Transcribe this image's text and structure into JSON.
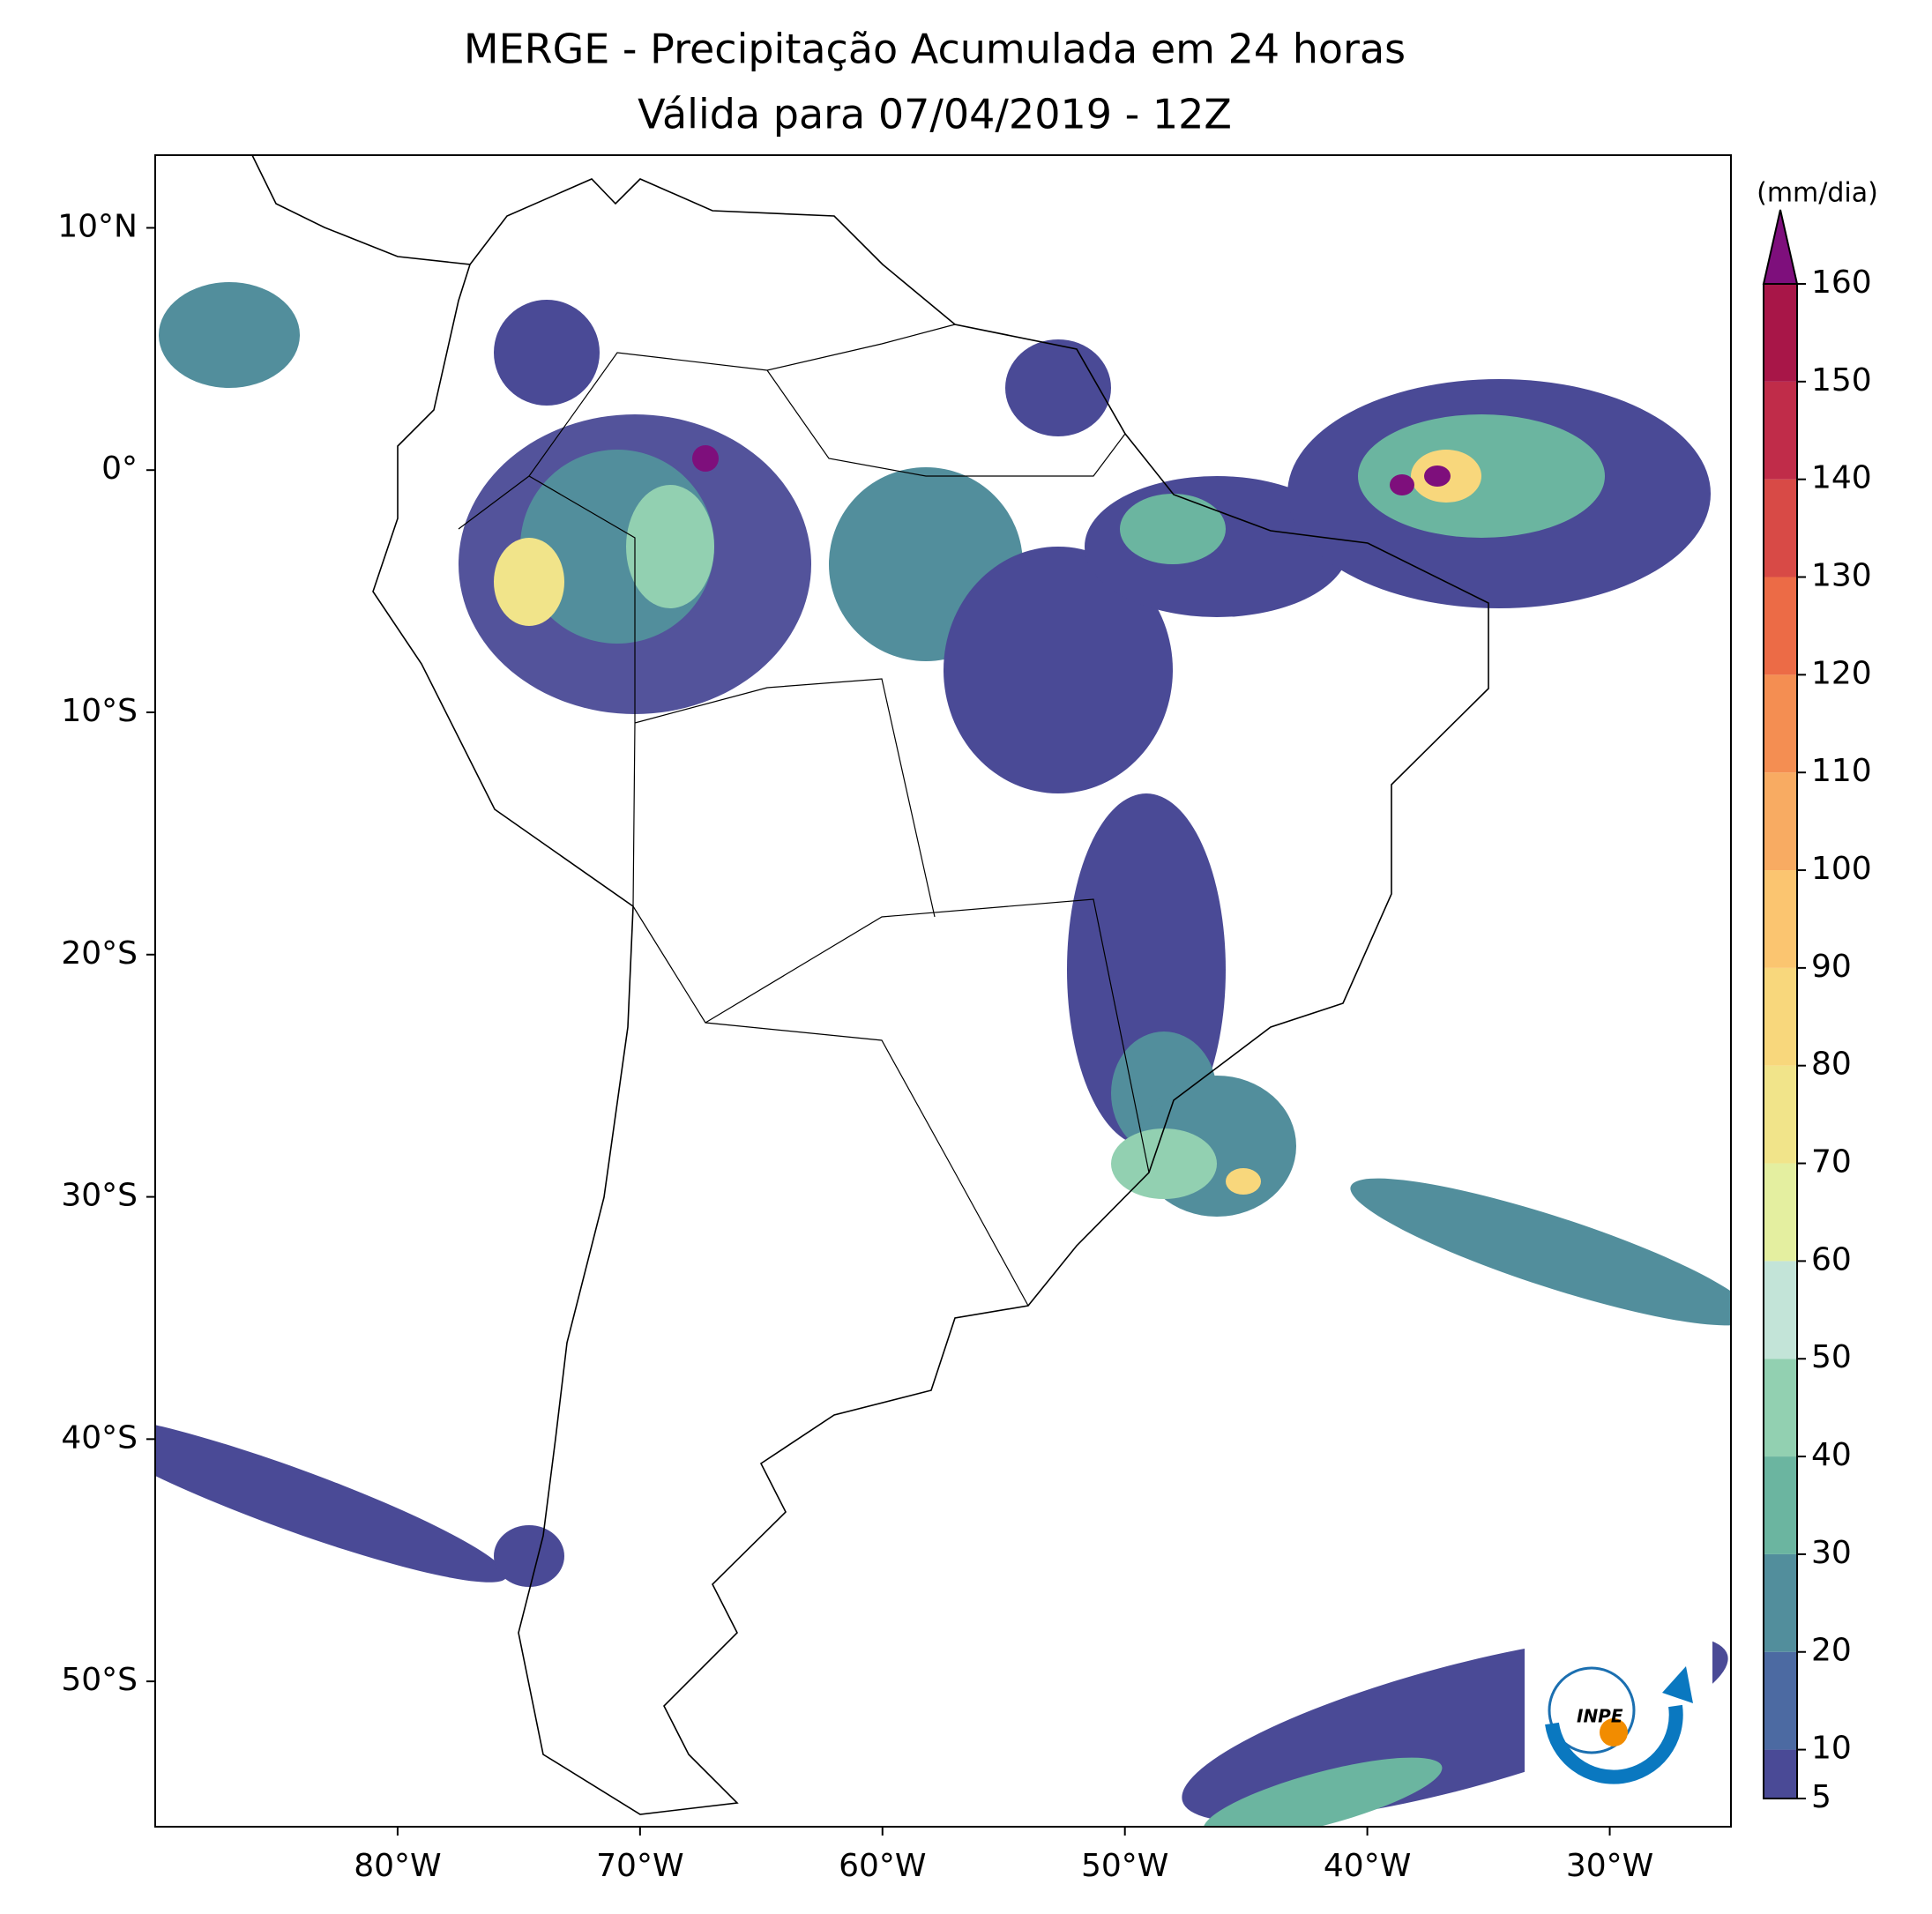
{
  "chart_data": {
    "type": "map",
    "title": "MERGE - Precipitação Acumulada em 24 horas",
    "subtitle": "Válida para 07/04/2019 - 12Z",
    "xlim": [
      -90,
      -25
    ],
    "ylim": [
      -56,
      13
    ],
    "xticks": [
      {
        "value": -80,
        "label": "80°W"
      },
      {
        "value": -70,
        "label": "70°W"
      },
      {
        "value": -60,
        "label": "60°W"
      },
      {
        "value": -50,
        "label": "50°W"
      },
      {
        "value": -40,
        "label": "40°W"
      },
      {
        "value": -30,
        "label": "30°W"
      }
    ],
    "yticks": [
      {
        "value": 10,
        "label": "10°N"
      },
      {
        "value": 0,
        "label": "0°"
      },
      {
        "value": -10,
        "label": "10°S"
      },
      {
        "value": -20,
        "label": "20°S"
      },
      {
        "value": -30,
        "label": "30°S"
      },
      {
        "value": -40,
        "label": "40°S"
      },
      {
        "value": -50,
        "label": "50°S"
      }
    ],
    "colorbar": {
      "label": "(mm/dia)",
      "clim": [
        5,
        160
      ],
      "ticks": [
        5,
        10,
        20,
        30,
        40,
        50,
        60,
        70,
        80,
        90,
        100,
        110,
        120,
        130,
        140,
        150,
        160
      ],
      "colors": [
        "#4a4a96",
        "#4c6aa2",
        "#528e9c",
        "#6bb5a0",
        "#92d0b1",
        "#c3e4d8",
        "#e4efa0",
        "#f1e48a",
        "#f8d77c",
        "#fbc570",
        "#f8ab62",
        "#f48e52",
        "#ec6b46",
        "#d84a46",
        "#c02c49",
        "#a81648"
      ],
      "extend_color": "#7e0f7c"
    },
    "logo": "INPE"
  }
}
